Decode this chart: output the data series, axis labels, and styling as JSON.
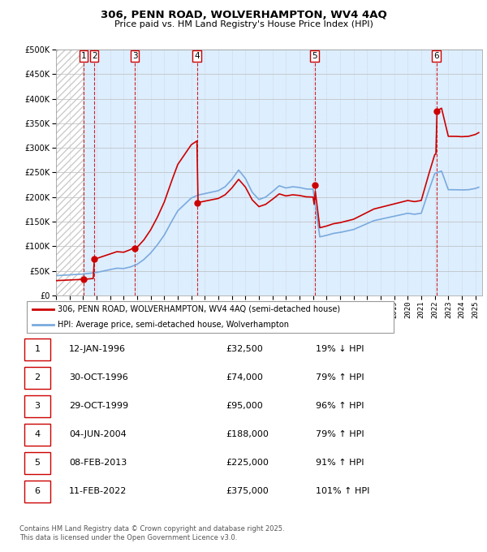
{
  "title": "306, PENN ROAD, WOLVERHAMPTON, WV4 4AQ",
  "subtitle": "Price paid vs. HM Land Registry's House Price Index (HPI)",
  "legend_line1": "306, PENN ROAD, WOLVERHAMPTON, WV4 4AQ (semi-detached house)",
  "legend_line2": "HPI: Average price, semi-detached house, Wolverhampton",
  "footer1": "Contains HM Land Registry data © Crown copyright and database right 2025.",
  "footer2": "This data is licensed under the Open Government Licence v3.0.",
  "ylim": [
    0,
    500000
  ],
  "yticks": [
    0,
    50000,
    100000,
    150000,
    200000,
    250000,
    300000,
    350000,
    400000,
    450000,
    500000
  ],
  "sale_color": "#cc0000",
  "hpi_color": "#7aaadd",
  "hpi_bg_color": "#ddeeff",
  "grid_color": "#bbbbbb",
  "transactions": [
    {
      "id": 1,
      "date": "12-JAN-1996",
      "year": 1996.04,
      "price": 32500,
      "pct": "19%",
      "dir": "↓"
    },
    {
      "id": 2,
      "date": "30-OCT-1996",
      "year": 1996.83,
      "price": 74000,
      "pct": "79%",
      "dir": "↑"
    },
    {
      "id": 3,
      "date": "29-OCT-1999",
      "year": 1999.83,
      "price": 95000,
      "pct": "96%",
      "dir": "↑"
    },
    {
      "id": 4,
      "date": "04-JUN-2004",
      "year": 2004.42,
      "price": 188000,
      "pct": "79%",
      "dir": "↑"
    },
    {
      "id": 5,
      "date": "08-FEB-2013",
      "year": 2013.11,
      "price": 225000,
      "pct": "91%",
      "dir": "↑"
    },
    {
      "id": 6,
      "date": "11-FEB-2022",
      "year": 2022.11,
      "price": 375000,
      "pct": "101%",
      "dir": "↑"
    }
  ],
  "hpi_monthly_x": [
    1994.0,
    1994.083,
    1994.167,
    1994.25,
    1994.333,
    1994.417,
    1994.5,
    1994.583,
    1994.667,
    1994.75,
    1994.833,
    1994.917,
    1995.0,
    1995.083,
    1995.167,
    1995.25,
    1995.333,
    1995.417,
    1995.5,
    1995.583,
    1995.667,
    1995.75,
    1995.833,
    1995.917,
    1996.0,
    1996.083,
    1996.167,
    1996.25,
    1996.333,
    1996.417,
    1996.5,
    1996.583,
    1996.667,
    1996.75,
    1996.833,
    1996.917,
    1997.0,
    1997.083,
    1997.167,
    1997.25,
    1997.333,
    1997.417,
    1997.5,
    1997.583,
    1997.667,
    1997.75,
    1997.833,
    1997.917,
    1998.0,
    1998.083,
    1998.167,
    1998.25,
    1998.333,
    1998.417,
    1998.5,
    1998.583,
    1998.667,
    1998.75,
    1998.833,
    1998.917,
    1999.0,
    1999.083,
    1999.167,
    1999.25,
    1999.333,
    1999.417,
    1999.5,
    1999.583,
    1999.667,
    1999.75,
    1999.833,
    1999.917,
    2000.0,
    2000.083,
    2000.167,
    2000.25,
    2000.333,
    2000.417,
    2000.5,
    2000.583,
    2000.667,
    2000.75,
    2000.833,
    2000.917,
    2001.0,
    2001.083,
    2001.167,
    2001.25,
    2001.333,
    2001.417,
    2001.5,
    2001.583,
    2001.667,
    2001.75,
    2001.833,
    2001.917,
    2002.0,
    2002.083,
    2002.167,
    2002.25,
    2002.333,
    2002.417,
    2002.5,
    2002.583,
    2002.667,
    2002.75,
    2002.833,
    2002.917,
    2003.0,
    2003.083,
    2003.167,
    2003.25,
    2003.333,
    2003.417,
    2003.5,
    2003.583,
    2003.667,
    2003.75,
    2003.833,
    2003.917,
    2004.0,
    2004.083,
    2004.167,
    2004.25,
    2004.333,
    2004.417,
    2004.5,
    2004.583,
    2004.667,
    2004.75,
    2004.833,
    2004.917,
    2005.0,
    2005.083,
    2005.167,
    2005.25,
    2005.333,
    2005.417,
    2005.5,
    2005.583,
    2005.667,
    2005.75,
    2005.833,
    2005.917,
    2006.0,
    2006.083,
    2006.167,
    2006.25,
    2006.333,
    2006.417,
    2006.5,
    2006.583,
    2006.667,
    2006.75,
    2006.833,
    2006.917,
    2007.0,
    2007.083,
    2007.167,
    2007.25,
    2007.333,
    2007.417,
    2007.5,
    2007.583,
    2007.667,
    2007.75,
    2007.833,
    2007.917,
    2008.0,
    2008.083,
    2008.167,
    2008.25,
    2008.333,
    2008.417,
    2008.5,
    2008.583,
    2008.667,
    2008.75,
    2008.833,
    2008.917,
    2009.0,
    2009.083,
    2009.167,
    2009.25,
    2009.333,
    2009.417,
    2009.5,
    2009.583,
    2009.667,
    2009.75,
    2009.833,
    2009.917,
    2010.0,
    2010.083,
    2010.167,
    2010.25,
    2010.333,
    2010.417,
    2010.5,
    2010.583,
    2010.667,
    2010.75,
    2010.833,
    2010.917,
    2011.0,
    2011.083,
    2011.167,
    2011.25,
    2011.333,
    2011.417,
    2011.5,
    2011.583,
    2011.667,
    2011.75,
    2011.833,
    2011.917,
    2012.0,
    2012.083,
    2012.167,
    2012.25,
    2012.333,
    2012.417,
    2012.5,
    2012.583,
    2012.667,
    2012.75,
    2012.833,
    2012.917,
    2013.0,
    2013.083,
    2013.167,
    2013.25,
    2013.333,
    2013.417,
    2013.5,
    2013.583,
    2013.667,
    2013.75,
    2013.833,
    2013.917,
    2014.0,
    2014.083,
    2014.167,
    2014.25,
    2014.333,
    2014.417,
    2014.5,
    2014.583,
    2014.667,
    2014.75,
    2014.833,
    2014.917,
    2015.0,
    2015.083,
    2015.167,
    2015.25,
    2015.333,
    2015.417,
    2015.5,
    2015.583,
    2015.667,
    2015.75,
    2015.833,
    2015.917,
    2016.0,
    2016.083,
    2016.167,
    2016.25,
    2016.333,
    2016.417,
    2016.5,
    2016.583,
    2016.667,
    2016.75,
    2016.833,
    2016.917,
    2017.0,
    2017.083,
    2017.167,
    2017.25,
    2017.333,
    2017.417,
    2017.5,
    2017.583,
    2017.667,
    2017.75,
    2017.833,
    2017.917,
    2018.0,
    2018.083,
    2018.167,
    2018.25,
    2018.333,
    2018.417,
    2018.5,
    2018.583,
    2018.667,
    2018.75,
    2018.833,
    2018.917,
    2019.0,
    2019.083,
    2019.167,
    2019.25,
    2019.333,
    2019.417,
    2019.5,
    2019.583,
    2019.667,
    2019.75,
    2019.833,
    2019.917,
    2020.0,
    2020.083,
    2020.167,
    2020.25,
    2020.333,
    2020.417,
    2020.5,
    2020.583,
    2020.667,
    2020.75,
    2020.833,
    2020.917,
    2021.0,
    2021.083,
    2021.167,
    2021.25,
    2021.333,
    2021.417,
    2021.5,
    2021.583,
    2021.667,
    2021.75,
    2021.833,
    2021.917,
    2022.0,
    2022.083,
    2022.167,
    2022.25,
    2022.333,
    2022.417,
    2022.5,
    2022.583,
    2022.667,
    2022.75,
    2022.833,
    2022.917,
    2023.0,
    2023.083,
    2023.167,
    2023.25,
    2023.333,
    2023.417,
    2023.5,
    2023.583,
    2023.667,
    2023.75,
    2023.833,
    2023.917,
    2024.0,
    2024.083,
    2024.167,
    2024.25,
    2024.333,
    2024.417,
    2024.5,
    2024.583,
    2024.667,
    2024.75,
    2024.833,
    2024.917,
    2025.0,
    2025.083,
    2025.167,
    2025.25
  ],
  "hpi_monthly_y": [
    40000,
    40200,
    40100,
    40300,
    40500,
    40600,
    40800,
    41000,
    41200,
    41100,
    41300,
    41500,
    41600,
    41800,
    42000,
    42100,
    42200,
    42300,
    42500,
    42600,
    42700,
    42800,
    43000,
    43200,
    43300,
    43500,
    43700,
    44000,
    44200,
    44500,
    44800,
    45000,
    45200,
    45500,
    45800,
    46200,
    46600,
    47000,
    47500,
    48000,
    48500,
    49000,
    49500,
    50000,
    50500,
    51000,
    51500,
    52000,
    52500,
    53000,
    53500,
    54000,
    54500,
    55000,
    55200,
    55100,
    55000,
    54800,
    54600,
    54500,
    54500,
    54800,
    55200,
    55600,
    56200,
    57000,
    57800,
    58600,
    59400,
    60200,
    61000,
    62000,
    63200,
    64500,
    66000,
    67500,
    69200,
    71000,
    73000,
    75000,
    77000,
    79200,
    81500,
    83800,
    86200,
    88800,
    91500,
    94000,
    97000,
    100000,
    103000,
    106000,
    109000,
    112000,
    115500,
    119000,
    122500,
    126000,
    130000,
    134000,
    138500,
    143000,
    148000,
    153000,
    158000,
    163000,
    167000,
    170000,
    172000,
    174000,
    176000,
    178000,
    180000,
    182500,
    185000,
    188000,
    191000,
    193000,
    195000,
    197000,
    198000,
    199000,
    200000,
    201000,
    202000,
    203000,
    204000,
    204500,
    205000,
    205500,
    206000,
    206500,
    207000,
    207500,
    208000,
    208500,
    209000,
    209500,
    210000,
    210500,
    211000,
    211500,
    212000,
    212500,
    213000,
    214000,
    215000,
    216000,
    217500,
    219000,
    221000,
    223000,
    225500,
    228000,
    230500,
    233000,
    236000,
    240000,
    245000,
    250000,
    255000,
    260000,
    262000,
    261000,
    258000,
    254000,
    249000,
    244000,
    238000,
    232000,
    226000,
    221000,
    218000,
    216000,
    214000,
    212000,
    210000,
    206000,
    202000,
    198000,
    195000,
    193000,
    192000,
    192000,
    193000,
    194000,
    196000,
    198000,
    200000,
    202000,
    205000,
    208000,
    211000,
    214000,
    217000,
    220000,
    222000,
    223000,
    223500,
    223000,
    222000,
    221000,
    220000,
    219000,
    218500,
    218000,
    218000,
    218500,
    219000,
    219500,
    220000,
    220500,
    221000,
    221000,
    220500,
    220000,
    219500,
    219000,
    218500,
    218000,
    217500,
    217000,
    216500,
    216000,
    215500,
    215000,
    215000,
    215500,
    216000,
    216500,
    217000,
    217500,
    118000,
    118500,
    119000,
    119500,
    120000,
    120500,
    121000,
    121500,
    122000,
    122500,
    123000,
    123500,
    124000,
    124500,
    125000,
    125500,
    126000,
    126500,
    127000,
    127500,
    128000,
    128500,
    129000,
    129500,
    130000,
    130500,
    131000,
    131500,
    132000,
    132500,
    133000,
    133500,
    134000,
    135000,
    136000,
    137000,
    138000,
    139000,
    140000,
    141000,
    142000,
    143000,
    144000,
    145000,
    146000,
    147000,
    148000,
    149000,
    150000,
    151000,
    152000,
    152500,
    153000,
    153500,
    154000,
    154500,
    155000,
    155500,
    156000,
    156500,
    157000,
    157500,
    158000,
    158500,
    159000,
    159500,
    160000,
    160500,
    161000,
    161500,
    162000,
    162500,
    163000,
    163500,
    164000,
    164500,
    165000,
    165500,
    166000,
    166500,
    167000,
    167000,
    165000,
    163000,
    162000,
    163000,
    165000,
    168000,
    172000,
    175000,
    178000,
    182000,
    186000,
    191000,
    197000,
    203000,
    209000,
    215000,
    221000,
    227000,
    233000,
    238000,
    242000,
    245000,
    248000,
    249500,
    250500,
    251000,
    251500,
    252000,
    253000,
    254000,
    253000,
    252000,
    213000,
    214000,
    215000,
    215500,
    216000,
    216500,
    217000,
    217000,
    216500,
    216000,
    215500,
    215000,
    214500,
    214000,
    213500,
    213000,
    213500,
    214000,
    214500,
    215000,
    215500,
    216000,
    216500,
    217000,
    217500,
    218000,
    219000,
    220000,
    221000,
    222000,
    222500,
    223000
  ],
  "xmin": 1994.0,
  "xmax": 2025.5,
  "xticks": [
    1994,
    1995,
    1996,
    1997,
    1998,
    1999,
    2000,
    2001,
    2002,
    2003,
    2004,
    2005,
    2006,
    2007,
    2008,
    2009,
    2010,
    2011,
    2012,
    2013,
    2014,
    2015,
    2016,
    2017,
    2018,
    2019,
    2020,
    2021,
    2022,
    2023,
    2024,
    2025
  ]
}
